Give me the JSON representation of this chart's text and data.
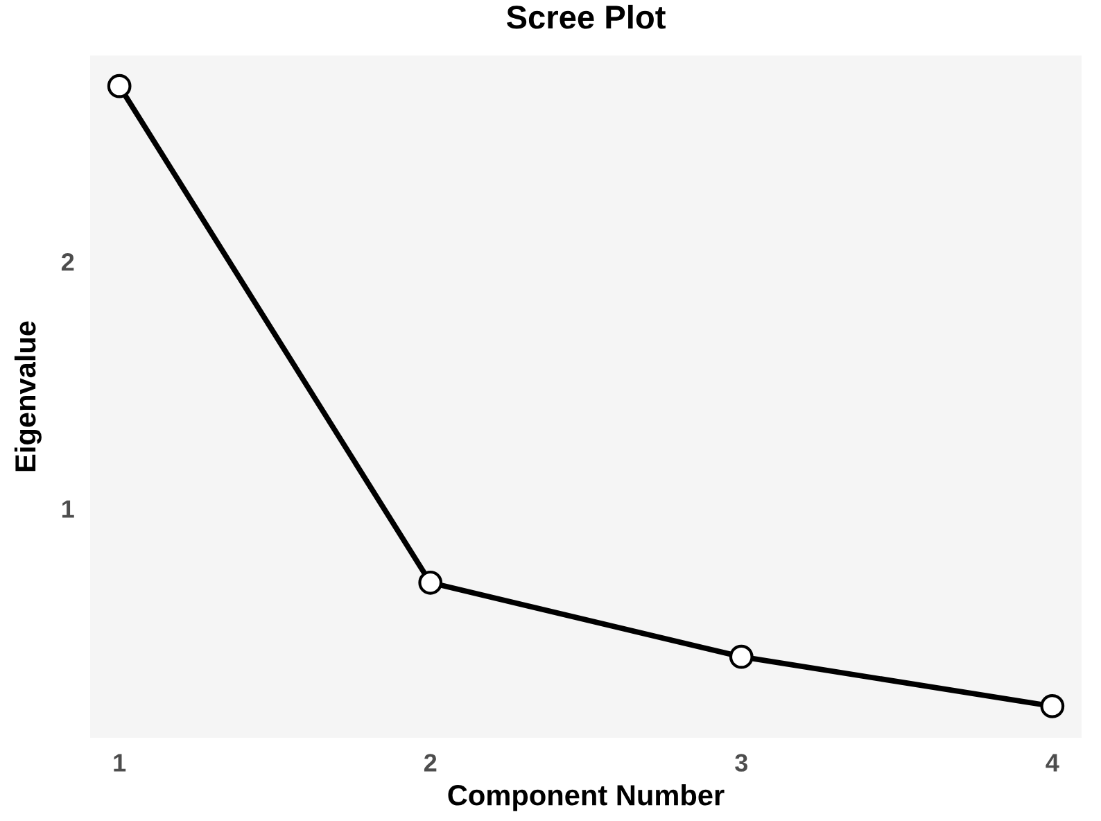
{
  "chart_data": {
    "type": "line",
    "title": "Scree Plot",
    "xlabel": "Component Number",
    "ylabel": "Eigenvalue",
    "x": [
      1,
      2,
      3,
      4
    ],
    "series": [
      {
        "color": "#000000",
        "values": [
          2.71,
          0.7,
          0.4,
          0.2
        ]
      }
    ],
    "xlim": [
      0.906,
      4.094
    ],
    "ylim": [
      0.072,
      2.834
    ],
    "xticks": [
      1,
      2,
      3,
      4
    ],
    "yticks": [
      1,
      2
    ],
    "marker": "circle",
    "line_style": "solid"
  }
}
